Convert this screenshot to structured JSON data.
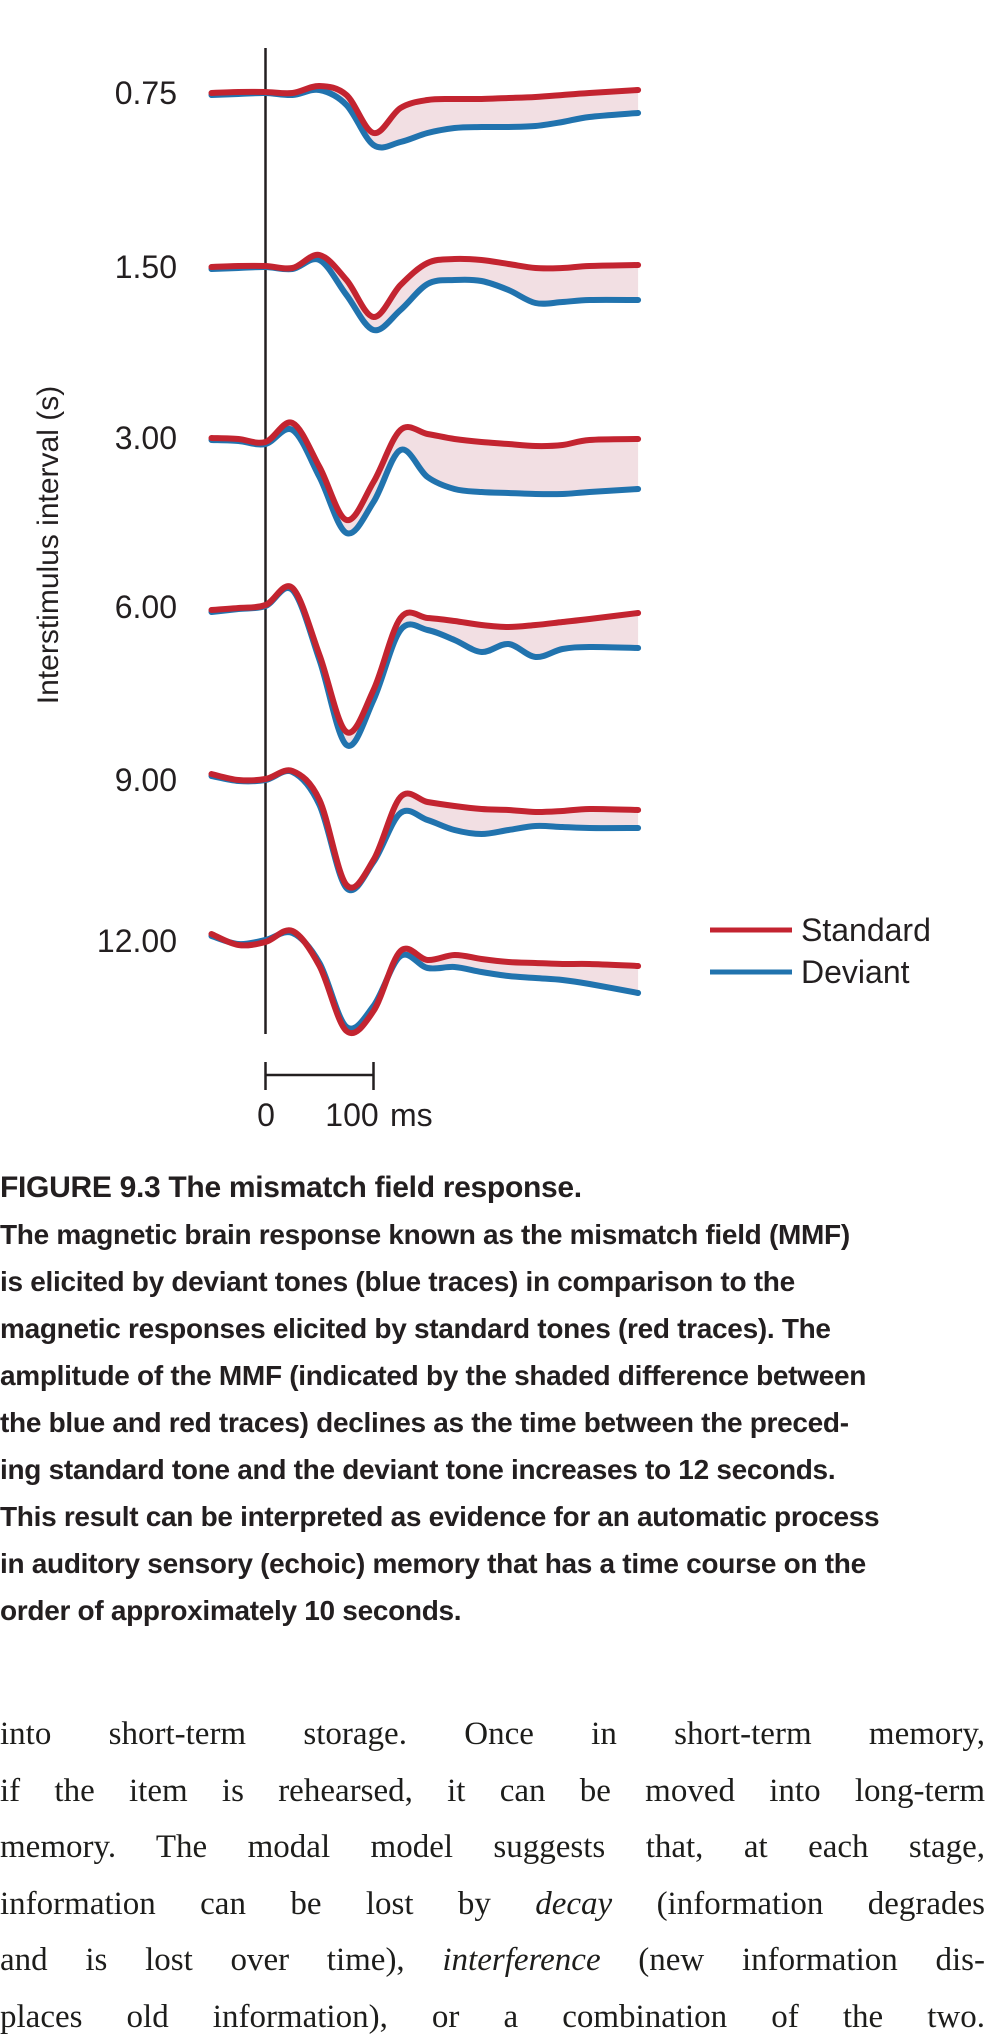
{
  "colors": {
    "standard": "#c32430",
    "deviant": "#2173ae",
    "difference_fill": "#f2dfe3",
    "axis": "#231f20"
  },
  "figure": {
    "y_axis_label": "Interstimulus interval (s)",
    "isi_labels": [
      "0.75",
      "1.50",
      "3.00",
      "6.00",
      "9.00",
      "12.00"
    ],
    "scale_bar": {
      "zero": "0",
      "hundred": "100",
      "unit": "ms"
    },
    "legend": {
      "standard_label": "Standard",
      "deviant_label": "Deviant"
    }
  },
  "chart_data": {
    "type": "line",
    "title": "Mismatch field (MMF) responses at increasing interstimulus intervals",
    "ylabel": "Interstimulus interval (s)",
    "x_axis": "time relative to tone onset, ms (scale bar 0–100 ms)",
    "amplitude_units": "arbitrary units, 1.0 ≈ 100 px; positive = up",
    "legend": [
      "Standard",
      "Deviant"
    ],
    "legend_position": "right of 12.00 trace",
    "grid": false,
    "isi_s": [
      0.75,
      1.5,
      3.0,
      6.0,
      9.0,
      12.0
    ],
    "x_ms": [
      -50,
      -25,
      0,
      25,
      50,
      75,
      100,
      125,
      150,
      175,
      200,
      225,
      250,
      275,
      300,
      345
    ],
    "series": [
      {
        "isi_s": 0.75,
        "standard": [
          0.0,
          0.01,
          0.01,
          0.0,
          0.07,
          -0.02,
          -0.4,
          -0.15,
          -0.07,
          -0.06,
          -0.06,
          -0.05,
          -0.04,
          -0.02,
          0.0,
          0.03
        ],
        "deviant": [
          -0.02,
          -0.01,
          0.0,
          -0.02,
          0.03,
          -0.12,
          -0.52,
          -0.49,
          -0.4,
          -0.35,
          -0.34,
          -0.34,
          -0.33,
          -0.29,
          -0.24,
          -0.2
        ]
      },
      {
        "isi_s": 1.5,
        "standard": [
          0.0,
          0.01,
          0.01,
          -0.01,
          0.12,
          -0.13,
          -0.5,
          -0.18,
          0.04,
          0.08,
          0.07,
          0.03,
          -0.01,
          -0.01,
          0.01,
          0.02
        ],
        "deviant": [
          -0.02,
          -0.01,
          0.0,
          -0.02,
          0.07,
          -0.28,
          -0.63,
          -0.43,
          -0.17,
          -0.13,
          -0.14,
          -0.23,
          -0.36,
          -0.35,
          -0.33,
          -0.33
        ]
      },
      {
        "isi_s": 3.0,
        "standard": [
          0.0,
          -0.01,
          -0.04,
          0.15,
          -0.29,
          -0.82,
          -0.44,
          0.08,
          0.04,
          -0.01,
          -0.04,
          -0.06,
          -0.08,
          -0.07,
          -0.02,
          -0.01
        ],
        "deviant": [
          -0.02,
          -0.03,
          -0.06,
          0.08,
          -0.39,
          -0.95,
          -0.64,
          -0.12,
          -0.39,
          -0.51,
          -0.54,
          -0.55,
          -0.56,
          -0.56,
          -0.54,
          -0.51
        ]
      },
      {
        "isi_s": 6.0,
        "standard": [
          -0.03,
          -0.01,
          0.02,
          0.19,
          -0.48,
          -1.25,
          -0.83,
          -0.11,
          -0.11,
          -0.14,
          -0.18,
          -0.2,
          -0.18,
          -0.15,
          -0.12,
          -0.06
        ],
        "deviant": [
          -0.05,
          -0.02,
          0.01,
          0.17,
          -0.53,
          -1.38,
          -0.93,
          -0.23,
          -0.23,
          -0.33,
          -0.45,
          -0.37,
          -0.5,
          -0.42,
          -0.4,
          -0.41
        ]
      },
      {
        "isi_s": 9.0,
        "standard": [
          0.06,
          0.0,
          0.01,
          0.09,
          -0.2,
          -1.05,
          -0.8,
          -0.17,
          -0.22,
          -0.26,
          -0.29,
          -0.3,
          -0.32,
          -0.31,
          -0.29,
          -0.3
        ],
        "deviant": [
          0.04,
          -0.01,
          0.0,
          0.08,
          -0.25,
          -1.08,
          -0.82,
          -0.33,
          -0.4,
          -0.5,
          -0.54,
          -0.5,
          -0.46,
          -0.47,
          -0.48,
          -0.48
        ]
      },
      {
        "isi_s": 12.0,
        "standard": [
          0.07,
          -0.04,
          -0.01,
          0.1,
          -0.25,
          -0.9,
          -0.7,
          -0.1,
          -0.19,
          -0.14,
          -0.18,
          -0.21,
          -0.22,
          -0.23,
          -0.23,
          -0.25
        ],
        "deviant": [
          0.05,
          -0.03,
          0.01,
          0.08,
          -0.22,
          -0.86,
          -0.65,
          -0.15,
          -0.27,
          -0.26,
          -0.31,
          -0.35,
          -0.37,
          -0.39,
          -0.43,
          -0.52
        ]
      }
    ]
  },
  "figure_caption": {
    "heading": "FIGURE 9.3  The mismatch field response.",
    "body_lines": [
      "The magnetic brain response known as the mismatch field (MMF)",
      "is elicited by deviant tones (blue traces) in comparison to the",
      "magnetic responses elicited by standard tones (red traces). The",
      "amplitude of the MMF (indicated by the shaded difference between",
      "the blue and red traces) declines as the time between the preced-",
      "ing standard tone and the deviant tone increases to 12 seconds.",
      "This result can be interpreted as evidence for an automatic process",
      "in auditory sensory (echoic) memory that has a time course on the",
      "order of approximately 10 seconds."
    ]
  },
  "body_text": {
    "lines": [
      {
        "pre": "into short-term storage. Once in short-term memory,"
      },
      {
        "pre": "if the item is rehearsed, it can be moved into long-term"
      },
      {
        "pre": "memory. The modal model suggests that, at each stage,"
      },
      {
        "pre": "information can be lost by ",
        "italic": "decay",
        "post": " (information degrades"
      },
      {
        "pre": "and is lost over time), ",
        "italic": "interference",
        "post": " (new information dis-"
      },
      {
        "pre": "places old information), or a combination of the two."
      }
    ]
  }
}
